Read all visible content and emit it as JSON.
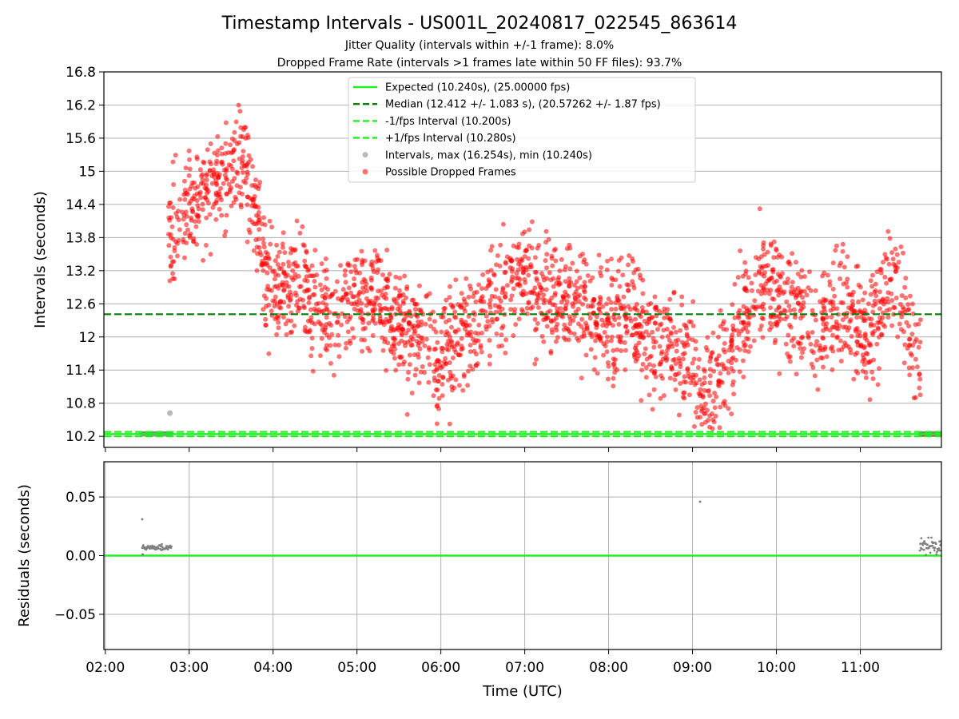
{
  "chart_data": [
    {
      "panel": "intervals",
      "type": "scatter",
      "title": "Timestamp Intervals - US001L_20240817_022545_863614",
      "subtitle_1": "Jitter Quality (intervals within +/-1 frame): 8.0%",
      "subtitle_2": "Dropped Frame Rate (intervals >1 frames late within 50 FF files): 93.7%",
      "ylabel": "Intervals (seconds)",
      "xlim": [
        1.983,
        11.967
      ],
      "ylim": [
        10.0,
        16.8
      ],
      "yticks": [
        10.2,
        10.8,
        11.4,
        12.0,
        12.6,
        13.2,
        13.8,
        14.4,
        15.0,
        15.6,
        16.2,
        16.8
      ],
      "grid": "y",
      "legend_position": "top-center",
      "legend": [
        {
          "label": "Expected (10.240s), (25.00000 fps)",
          "style": "solid",
          "color": "#22ee22"
        },
        {
          "label": "Median (12.412 +/- 1.083 s), (20.57262 +/- 1.87 fps)",
          "style": "dashed",
          "color": "#008000"
        },
        {
          "label": "-1/fps Interval (10.200s)",
          "style": "dashed",
          "color": "#22ee22"
        },
        {
          "label": "+1/fps Interval (10.280s)",
          "style": "dashed",
          "color": "#22ee22"
        },
        {
          "label": "Intervals, max (16.254s), min (10.240s)",
          "style": "marker",
          "color": "#808080"
        },
        {
          "label": "Possible Dropped Frames",
          "style": "marker",
          "color": "#ff0000"
        }
      ],
      "lines": {
        "expected": 10.24,
        "median": 12.412,
        "minus_fps": 10.2,
        "plus_fps": 10.28
      },
      "normal_intervals": {
        "segments": [
          [
            2.43,
            2.79,
            10.247
          ],
          [
            11.72,
            11.97,
            10.247
          ]
        ],
        "outlier": [
          2.77,
          10.62
        ]
      },
      "trend": [
        [
          2.75,
          13.9
        ],
        [
          2.85,
          14.0
        ],
        [
          3.0,
          14.4
        ],
        [
          3.2,
          14.6
        ],
        [
          3.4,
          14.9
        ],
        [
          3.55,
          15.1
        ],
        [
          3.7,
          14.9
        ],
        [
          3.8,
          14.3
        ],
        [
          3.9,
          13.4
        ],
        [
          4.0,
          12.9
        ],
        [
          4.25,
          12.9
        ],
        [
          4.5,
          12.7
        ],
        [
          4.75,
          12.4
        ],
        [
          5.0,
          12.6
        ],
        [
          5.25,
          12.8
        ],
        [
          5.5,
          12.3
        ],
        [
          5.75,
          11.9
        ],
        [
          6.0,
          11.6
        ],
        [
          6.25,
          12.0
        ],
        [
          6.5,
          12.4
        ],
        [
          6.75,
          12.7
        ],
        [
          7.0,
          13.2
        ],
        [
          7.25,
          12.7
        ],
        [
          7.5,
          12.7
        ],
        [
          7.75,
          12.5
        ],
        [
          8.0,
          12.2
        ],
        [
          8.25,
          12.4
        ],
        [
          8.5,
          11.9
        ],
        [
          8.75,
          11.8
        ],
        [
          9.0,
          11.4
        ],
        [
          9.1,
          11.0
        ],
        [
          9.3,
          11.3
        ],
        [
          9.5,
          11.9
        ],
        [
          9.7,
          12.5
        ],
        [
          9.9,
          13.0
        ],
        [
          10.0,
          12.6
        ],
        [
          10.25,
          12.4
        ],
        [
          10.5,
          12.1
        ],
        [
          10.75,
          12.6
        ],
        [
          11.0,
          12.1
        ],
        [
          11.2,
          12.2
        ],
        [
          11.35,
          13.2
        ],
        [
          11.5,
          12.6
        ],
        [
          11.65,
          11.8
        ],
        [
          11.72,
          11.3
        ]
      ],
      "spread": 0.5,
      "dropped_point_count": 2400,
      "dropped_at_expected": [
        11.72,
        11.9
      ]
    },
    {
      "panel": "residuals",
      "type": "scatter",
      "xlabel": "Time (UTC)",
      "ylabel": "Residuals (seconds)",
      "xlim": [
        1.983,
        11.967
      ],
      "ylim": [
        -0.08,
        0.08
      ],
      "yticks": [
        0.05,
        0.0,
        -0.05
      ],
      "ytick_labels": [
        "0.05",
        "0.00",
        "−0.05"
      ],
      "xticks": [
        2,
        3,
        4,
        5,
        6,
        7,
        8,
        9,
        10,
        11
      ],
      "xtick_labels": [
        "02:00",
        "03:00",
        "04:00",
        "05:00",
        "06:00",
        "07:00",
        "08:00",
        "09:00",
        "10:00",
        "11:00"
      ],
      "grid": "both",
      "zero_line_color": "#22ee22",
      "points": [
        [
          2.44,
          0.031
        ],
        [
          2.445,
          0.001
        ],
        [
          9.09,
          0.046
        ]
      ],
      "clusters": [
        [
          2.44,
          2.79,
          0.007,
          0.001
        ],
        [
          11.71,
          11.97,
          0.007,
          0.004
        ]
      ]
    }
  ]
}
